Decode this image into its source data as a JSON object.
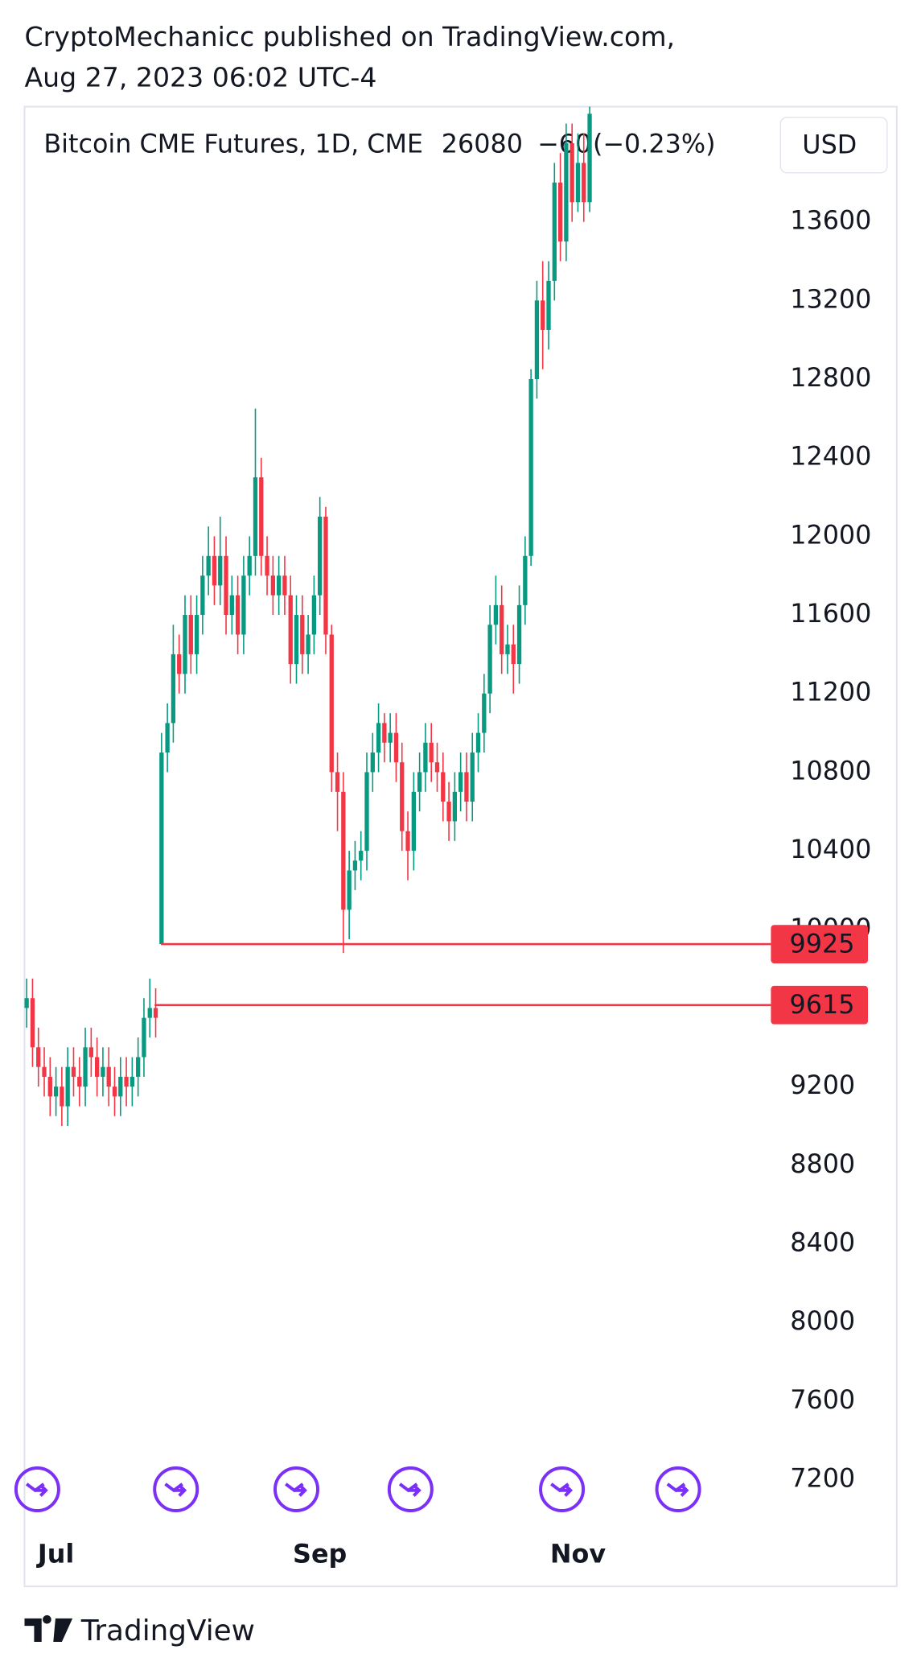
{
  "header": {
    "line1": "CryptoMechanicc published on TradingView.com,",
    "line2": "Aug 27, 2023 06:02 UTC-4"
  },
  "footer": {
    "brand": "TradingView"
  },
  "chart_data": {
    "type": "candlestick",
    "title": "Bitcoin CME Futures, 1D, CME",
    "last": 26080,
    "change": {
      "value": -60,
      "label": "−60"
    },
    "change_pct": {
      "value": -0.23,
      "label": "(−0.23%)"
    },
    "currency": "USD",
    "up_color": "#089981",
    "down_color": "#f23645",
    "grid": false,
    "ylim": [
      6657,
      14186
    ],
    "yticks": [
      7200,
      7600,
      8000,
      8400,
      8800,
      9200,
      10000,
      10400,
      10800,
      11200,
      11600,
      12000,
      12400,
      12800,
      13200,
      13600
    ],
    "hlines": [
      {
        "value": 9925,
        "color": "#f23645"
      },
      {
        "value": 9615,
        "color": "#f23645"
      }
    ],
    "categories": [
      null,
      null,
      null,
      null,
      null,
      "Jul",
      null,
      null,
      null,
      null,
      null,
      null,
      null,
      null,
      null,
      null,
      null,
      null,
      null,
      null,
      null,
      null,
      null,
      null,
      null,
      null,
      null,
      null,
      null,
      null,
      null,
      null,
      null,
      null,
      null,
      null,
      null,
      null,
      null,
      null,
      null,
      null,
      null,
      null,
      null,
      null,
      null,
      null,
      null,
      null,
      "Sep",
      null,
      null,
      null,
      null,
      null,
      null,
      null,
      null,
      null,
      null,
      null,
      null,
      null,
      null,
      null,
      null,
      null,
      null,
      null,
      null,
      null,
      null,
      null,
      null,
      null,
      null,
      null,
      null,
      null,
      null,
      null,
      null,
      null,
      null,
      null,
      null,
      null,
      null,
      null,
      null,
      null,
      null,
      null,
      "Nov",
      null,
      null
    ],
    "open": [
      9600,
      9650,
      9400,
      9300,
      9250,
      9150,
      9200,
      9100,
      9300,
      9250,
      9200,
      9400,
      9350,
      9250,
      9300,
      9200,
      9150,
      9250,
      9200,
      9250,
      9350,
      9550,
      9600,
      9925,
      10900,
      11050,
      11400,
      11300,
      11600,
      11400,
      11600,
      11800,
      11900,
      11750,
      11900,
      11600,
      11700,
      11500,
      11800,
      11900,
      12300,
      11900,
      11800,
      11700,
      11800,
      11700,
      11350,
      11600,
      11400,
      11500,
      11700,
      12100,
      11500,
      10800,
      10700,
      10100,
      10300,
      10350,
      10400,
      10800,
      10900,
      11050,
      10950,
      11000,
      10850,
      10500,
      10400,
      10700,
      10800,
      10950,
      10850,
      10800,
      10650,
      10550,
      10700,
      10800,
      10650,
      10900,
      11000,
      11200,
      11550,
      11650,
      11400,
      11450,
      11350,
      11650,
      11900,
      12800,
      13200,
      13050,
      13300,
      13800,
      13500,
      14000,
      13700,
      13900,
      13700
    ],
    "high": [
      9750,
      9750,
      9500,
      9400,
      9350,
      9300,
      9300,
      9400,
      9400,
      9350,
      9500,
      9500,
      9450,
      9400,
      9400,
      9300,
      9350,
      9350,
      9350,
      9450,
      9650,
      9750,
      9700,
      11000,
      11150,
      11550,
      11500,
      11700,
      11700,
      11700,
      11900,
      12050,
      12000,
      12100,
      12000,
      11800,
      11800,
      11900,
      12000,
      12650,
      12400,
      12000,
      11900,
      11900,
      11900,
      11800,
      11700,
      11700,
      11600,
      11800,
      12200,
      12150,
      11550,
      10900,
      10800,
      10400,
      10450,
      10500,
      10900,
      11000,
      11150,
      11100,
      11100,
      11100,
      10950,
      10600,
      10800,
      10900,
      11050,
      11050,
      10950,
      10900,
      10750,
      10800,
      10900,
      10900,
      11000,
      11100,
      11300,
      11650,
      11800,
      11750,
      11550,
      11550,
      11750,
      12000,
      12850,
      13300,
      13400,
      13400,
      13900,
      13950,
      14100,
      14100,
      14050,
      14050,
      14250
    ],
    "low": [
      9500,
      9300,
      9200,
      9150,
      9050,
      9050,
      9000,
      9000,
      9150,
      9100,
      9100,
      9250,
      9150,
      9150,
      9100,
      9050,
      9050,
      9100,
      9100,
      9150,
      9250,
      9450,
      9450,
      9925,
      10800,
      10950,
      11200,
      11200,
      11300,
      11300,
      11500,
      11700,
      11650,
      11650,
      11500,
      11500,
      11400,
      11400,
      11700,
      11800,
      11800,
      11700,
      11600,
      11600,
      11600,
      11250,
      11250,
      11300,
      11300,
      11400,
      11600,
      11400,
      10700,
      10500,
      9880,
      9950,
      10200,
      10250,
      10300,
      10700,
      10800,
      10850,
      10850,
      10750,
      10400,
      10250,
      10300,
      10600,
      10700,
      10750,
      10700,
      10550,
      10450,
      10450,
      10600,
      10550,
      10550,
      10800,
      10900,
      11100,
      11450,
      11300,
      11300,
      11200,
      11250,
      11550,
      11850,
      12700,
      12850,
      12950,
      13200,
      13400,
      13400,
      13600,
      13650,
      13600,
      13650
    ],
    "close": [
      9650,
      9400,
      9300,
      9250,
      9150,
      9200,
      9100,
      9300,
      9250,
      9200,
      9400,
      9350,
      9250,
      9300,
      9200,
      9150,
      9250,
      9200,
      9250,
      9350,
      9550,
      9600,
      9550,
      10900,
      11050,
      11400,
      11300,
      11600,
      11400,
      11600,
      11800,
      11900,
      11750,
      11900,
      11600,
      11700,
      11500,
      11800,
      11900,
      12300,
      11900,
      11800,
      11700,
      11800,
      11700,
      11350,
      11600,
      11400,
      11500,
      11700,
      12100,
      11500,
      10800,
      10700,
      10100,
      10300,
      10350,
      10400,
      10800,
      10900,
      11050,
      10950,
      11000,
      10850,
      10500,
      10400,
      10700,
      10800,
      10950,
      10850,
      10800,
      10650,
      10550,
      10700,
      10800,
      10650,
      10900,
      11000,
      11200,
      11550,
      11650,
      11400,
      11450,
      11350,
      11650,
      11900,
      12800,
      13200,
      13050,
      13300,
      13800,
      13500,
      14000,
      13700,
      13900,
      13700,
      14150
    ]
  }
}
